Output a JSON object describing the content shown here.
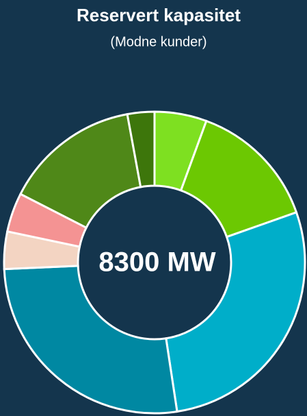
{
  "chart_data": {
    "type": "donut",
    "title": "Reservert kapasitet",
    "subtitle": "(Modne kunder)",
    "center_label": "8300 MW",
    "values": [
      5.6,
      14,
      28,
      26.7,
      4,
      4.2,
      14.6,
      2.9
    ],
    "colors": [
      "#7ee021",
      "#6cc802",
      "#00aec9",
      "#0088a2",
      "#f3d4c2",
      "#f49393",
      "#4f8818",
      "#3d760b"
    ]
  }
}
